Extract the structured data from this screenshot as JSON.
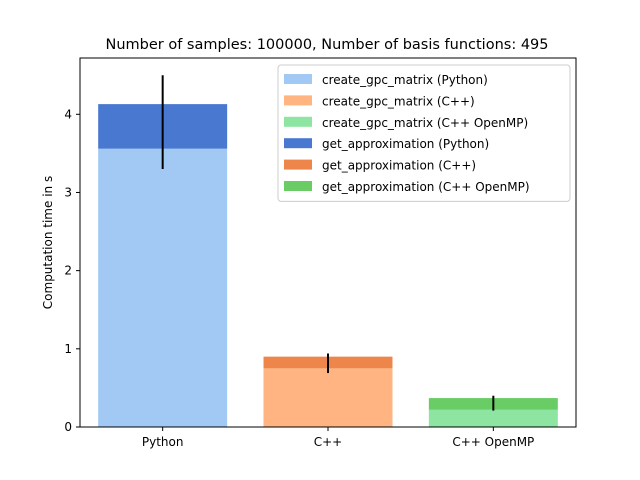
{
  "chart_data": {
    "type": "bar",
    "stacked": true,
    "title": "Number of samples: 100000, Number of basis functions: 495",
    "xlabel": "",
    "ylabel": "Computation time in s",
    "categories": [
      "Python",
      "C++",
      "C++ OpenMP"
    ],
    "ylim": [
      0,
      4.72
    ],
    "yticks": [
      0,
      1,
      2,
      3,
      4
    ],
    "grid": false,
    "legend_position": "top-right",
    "legend_order": [
      "create_python",
      "create_cpp",
      "create_omp",
      "get_python",
      "get_cpp",
      "get_omp"
    ],
    "series": [
      {
        "id": "create_python",
        "name": "create_gpc_matrix (Python)",
        "color": "#a1c9f4",
        "stack": "bottom",
        "category_index": 0,
        "value": 3.56
      },
      {
        "id": "create_cpp",
        "name": "create_gpc_matrix (C++)",
        "color": "#ffb482",
        "stack": "bottom",
        "category_index": 1,
        "value": 0.75
      },
      {
        "id": "create_omp",
        "name": "create_gpc_matrix (C++ OpenMP)",
        "color": "#8de5a1",
        "stack": "bottom",
        "category_index": 2,
        "value": 0.22
      },
      {
        "id": "get_python",
        "name": "get_approximation (Python)",
        "color": "#4878d0",
        "stack": "top",
        "category_index": 0,
        "value": 0.57
      },
      {
        "id": "get_cpp",
        "name": "get_approximation (C++)",
        "color": "#ee854a",
        "stack": "top",
        "category_index": 1,
        "value": 0.15
      },
      {
        "id": "get_omp",
        "name": "get_approximation (C++ OpenMP)",
        "color": "#6acc64",
        "stack": "top",
        "category_index": 2,
        "value": 0.15
      }
    ],
    "error_bars": [
      {
        "category_index": 0,
        "low": 3.3,
        "high": 4.5
      },
      {
        "category_index": 1,
        "low": 0.69,
        "high": 0.94
      },
      {
        "category_index": 2,
        "low": 0.21,
        "high": 0.4
      }
    ]
  }
}
